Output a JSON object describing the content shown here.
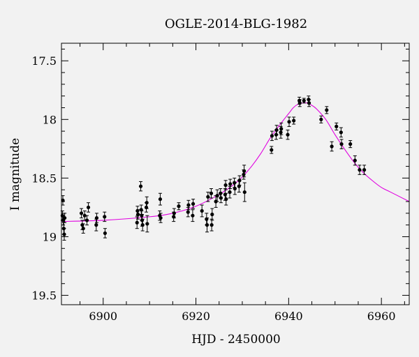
{
  "colors": {
    "background": "#f2f2f2",
    "points": "#000000",
    "model_curve": "#e000e0"
  },
  "chart_data": {
    "type": "scatter",
    "title": "OGLE-2014-BLG-1982",
    "xlabel": "HJD - 2450000",
    "ylabel": "I magnitude",
    "xlim": [
      6891,
      6966
    ],
    "ylim": [
      19.58,
      17.35
    ],
    "y_inverted": true,
    "x_ticks": [
      6900,
      6920,
      6940,
      6960
    ],
    "x_tick_labels": [
      "6900",
      "6920",
      "6940",
      "6960"
    ],
    "y_ticks": [
      17.5,
      18,
      18.5,
      19,
      19.5
    ],
    "y_tick_labels": [
      "17.5",
      "18",
      "18.5",
      "19",
      "19.5"
    ],
    "grid": false,
    "series": [
      {
        "kind": "points_with_error_bars",
        "points": [
          {
            "x": 6891.2,
            "y": 18.82,
            "err": 0.04
          },
          {
            "x": 6891.3,
            "y": 18.69,
            "err": 0.04
          },
          {
            "x": 6891.4,
            "y": 18.86,
            "err": 0.04
          },
          {
            "x": 6891.5,
            "y": 18.93,
            "err": 0.05
          },
          {
            "x": 6891.6,
            "y": 18.98,
            "err": 0.05
          },
          {
            "x": 6891.7,
            "y": 18.84,
            "err": 0.04
          },
          {
            "x": 6895.3,
            "y": 18.8,
            "err": 0.04
          },
          {
            "x": 6895.5,
            "y": 18.9,
            "err": 0.04
          },
          {
            "x": 6895.7,
            "y": 18.93,
            "err": 0.04
          },
          {
            "x": 6896.0,
            "y": 18.82,
            "err": 0.04
          },
          {
            "x": 6896.5,
            "y": 18.86,
            "err": 0.04
          },
          {
            "x": 6896.8,
            "y": 18.75,
            "err": 0.04
          },
          {
            "x": 6898.5,
            "y": 18.9,
            "err": 0.05
          },
          {
            "x": 6898.6,
            "y": 18.84,
            "err": 0.04
          },
          {
            "x": 6900.3,
            "y": 18.83,
            "err": 0.04
          },
          {
            "x": 6900.4,
            "y": 18.97,
            "err": 0.04
          },
          {
            "x": 6907.3,
            "y": 18.88,
            "err": 0.05
          },
          {
            "x": 6907.4,
            "y": 18.78,
            "err": 0.04
          },
          {
            "x": 6907.5,
            "y": 18.81,
            "err": 0.04
          },
          {
            "x": 6908.1,
            "y": 18.57,
            "err": 0.04
          },
          {
            "x": 6908.2,
            "y": 18.77,
            "err": 0.04
          },
          {
            "x": 6908.3,
            "y": 18.82,
            "err": 0.04
          },
          {
            "x": 6908.4,
            "y": 18.86,
            "err": 0.05
          },
          {
            "x": 6908.5,
            "y": 18.9,
            "err": 0.05
          },
          {
            "x": 6909.3,
            "y": 18.75,
            "err": 0.04
          },
          {
            "x": 6909.4,
            "y": 18.71,
            "err": 0.05
          },
          {
            "x": 6909.5,
            "y": 18.89,
            "err": 0.07
          },
          {
            "x": 6912.2,
            "y": 18.82,
            "err": 0.04
          },
          {
            "x": 6912.3,
            "y": 18.68,
            "err": 0.05
          },
          {
            "x": 6912.4,
            "y": 18.84,
            "err": 0.04
          },
          {
            "x": 6915.2,
            "y": 18.83,
            "err": 0.04
          },
          {
            "x": 6915.3,
            "y": 18.8,
            "err": 0.04
          },
          {
            "x": 6916.3,
            "y": 18.74,
            "err": 0.03
          },
          {
            "x": 6918.3,
            "y": 18.79,
            "err": 0.04
          },
          {
            "x": 6918.4,
            "y": 18.73,
            "err": 0.04
          },
          {
            "x": 6919.3,
            "y": 18.82,
            "err": 0.05
          },
          {
            "x": 6919.4,
            "y": 18.72,
            "err": 0.04
          },
          {
            "x": 6921.3,
            "y": 18.78,
            "err": 0.05
          },
          {
            "x": 6922.3,
            "y": 18.85,
            "err": 0.05
          },
          {
            "x": 6922.4,
            "y": 18.9,
            "err": 0.06
          },
          {
            "x": 6922.6,
            "y": 18.66,
            "err": 0.04
          },
          {
            "x": 6923.3,
            "y": 18.63,
            "err": 0.04
          },
          {
            "x": 6923.4,
            "y": 18.9,
            "err": 0.05
          },
          {
            "x": 6923.5,
            "y": 18.81,
            "err": 0.05
          },
          {
            "x": 6924.3,
            "y": 18.7,
            "err": 0.05
          },
          {
            "x": 6924.6,
            "y": 18.65,
            "err": 0.05
          },
          {
            "x": 6925.3,
            "y": 18.63,
            "err": 0.04
          },
          {
            "x": 6925.4,
            "y": 18.67,
            "err": 0.04
          },
          {
            "x": 6926.3,
            "y": 18.64,
            "err": 0.05
          },
          {
            "x": 6926.4,
            "y": 18.56,
            "err": 0.04
          },
          {
            "x": 6926.5,
            "y": 18.68,
            "err": 0.05
          },
          {
            "x": 6927.3,
            "y": 18.62,
            "err": 0.05
          },
          {
            "x": 6927.4,
            "y": 18.55,
            "err": 0.04
          },
          {
            "x": 6928.3,
            "y": 18.54,
            "err": 0.04
          },
          {
            "x": 6928.4,
            "y": 18.59,
            "err": 0.05
          },
          {
            "x": 6929.3,
            "y": 18.57,
            "err": 0.05
          },
          {
            "x": 6929.4,
            "y": 18.52,
            "err": 0.04
          },
          {
            "x": 6930.3,
            "y": 18.47,
            "err": 0.04
          },
          {
            "x": 6930.4,
            "y": 18.44,
            "err": 0.05
          },
          {
            "x": 6930.5,
            "y": 18.62,
            "err": 0.08
          },
          {
            "x": 6936.3,
            "y": 18.26,
            "err": 0.03
          },
          {
            "x": 6936.4,
            "y": 18.14,
            "err": 0.04
          },
          {
            "x": 6937.3,
            "y": 18.13,
            "err": 0.04
          },
          {
            "x": 6937.4,
            "y": 18.09,
            "err": 0.04
          },
          {
            "x": 6938.3,
            "y": 18.11,
            "err": 0.05
          },
          {
            "x": 6938.4,
            "y": 18.08,
            "err": 0.05
          },
          {
            "x": 6939.8,
            "y": 18.13,
            "err": 0.04
          },
          {
            "x": 6940.1,
            "y": 18.02,
            "err": 0.04
          },
          {
            "x": 6941.1,
            "y": 18.01,
            "err": 0.03
          },
          {
            "x": 6942.3,
            "y": 17.84,
            "err": 0.03
          },
          {
            "x": 6942.4,
            "y": 17.86,
            "err": 0.03
          },
          {
            "x": 6943.3,
            "y": 17.84,
            "err": 0.02
          },
          {
            "x": 6944.3,
            "y": 17.83,
            "err": 0.03
          },
          {
            "x": 6944.4,
            "y": 17.86,
            "err": 0.03
          },
          {
            "x": 6947.0,
            "y": 18.0,
            "err": 0.03
          },
          {
            "x": 6948.2,
            "y": 17.92,
            "err": 0.03
          },
          {
            "x": 6949.3,
            "y": 18.23,
            "err": 0.04
          },
          {
            "x": 6950.3,
            "y": 18.06,
            "err": 0.03
          },
          {
            "x": 6951.3,
            "y": 18.11,
            "err": 0.04
          },
          {
            "x": 6951.4,
            "y": 18.21,
            "err": 0.04
          },
          {
            "x": 6953.3,
            "y": 18.21,
            "err": 0.03
          },
          {
            "x": 6954.3,
            "y": 18.35,
            "err": 0.04
          },
          {
            "x": 6955.3,
            "y": 18.43,
            "err": 0.04
          },
          {
            "x": 6956.3,
            "y": 18.43,
            "err": 0.04
          }
        ]
      },
      {
        "kind": "model_curve",
        "x": [
          6891,
          6900,
          6910,
          6915,
          6920,
          6925,
          6928,
          6930,
          6932,
          6934,
          6936,
          6938,
          6940,
          6941,
          6942,
          6943,
          6944,
          6945,
          6946,
          6948,
          6950,
          6952,
          6954,
          6956,
          6958,
          6960,
          6962,
          6966
        ],
        "y": [
          18.87,
          18.86,
          18.83,
          18.8,
          18.74,
          18.64,
          18.56,
          18.49,
          18.4,
          18.29,
          18.16,
          18.05,
          17.95,
          17.9,
          17.87,
          17.86,
          17.86,
          17.88,
          17.91,
          18.0,
          18.13,
          18.25,
          18.36,
          18.45,
          18.52,
          18.58,
          18.62,
          18.7
        ]
      }
    ]
  }
}
